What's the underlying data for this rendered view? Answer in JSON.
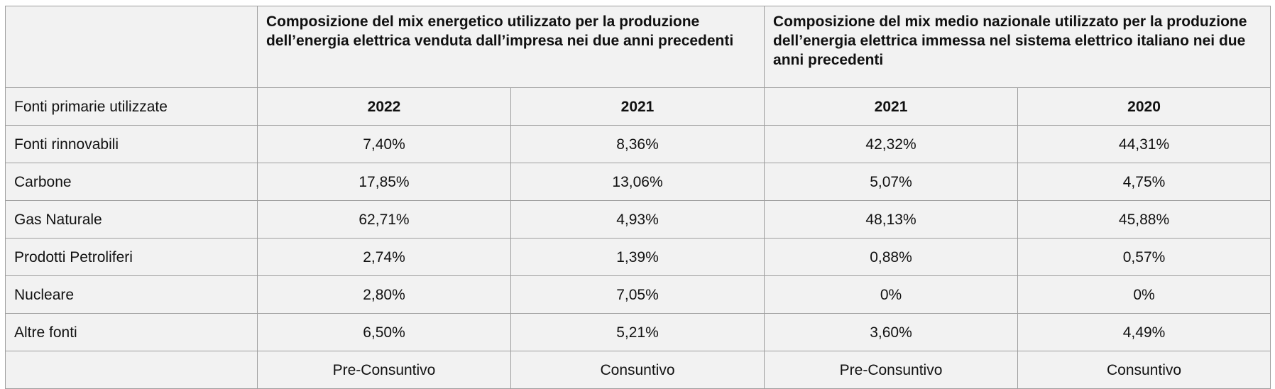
{
  "header": {
    "group1_title": "Composizione del mix energetico utilizzato per la produzione dell’energia elettrica venduta dall’impresa nei due anni precedenti",
    "group2_title": "Composizione del mix medio nazionale utilizzato per la produzione dell’energia elettrica immessa nel sistema elettrico italiano nei due anni precedenti"
  },
  "years": {
    "label": "Fonti primarie utilizzate",
    "cols": [
      "2022",
      "2021",
      "2021",
      "2020"
    ]
  },
  "rows": [
    {
      "source": "Fonti rinnovabili",
      "values": [
        "7,40%",
        "8,36%",
        "42,32%",
        "44,31%"
      ]
    },
    {
      "source": "Carbone",
      "values": [
        "17,85%",
        "13,06%",
        "5,07%",
        "4,75%"
      ]
    },
    {
      "source": "Gas Naturale",
      "values": [
        "62,71%",
        "4,93%",
        "48,13%",
        "45,88%"
      ]
    },
    {
      "source": "Prodotti Petroliferi",
      "values": [
        "2,74%",
        "1,39%",
        "0,88%",
        "0,57%"
      ]
    },
    {
      "source": "Nucleare",
      "values": [
        "2,80%",
        "7,05%",
        "0%",
        "0%"
      ]
    },
    {
      "source": "Altre fonti",
      "values": [
        "6,50%",
        "5,21%",
        "3,60%",
        "4,49%"
      ]
    }
  ],
  "footer": {
    "status": [
      "Pre-Consuntivo",
      "Consuntivo",
      "Pre-Consuntivo",
      "Consuntivo"
    ]
  }
}
